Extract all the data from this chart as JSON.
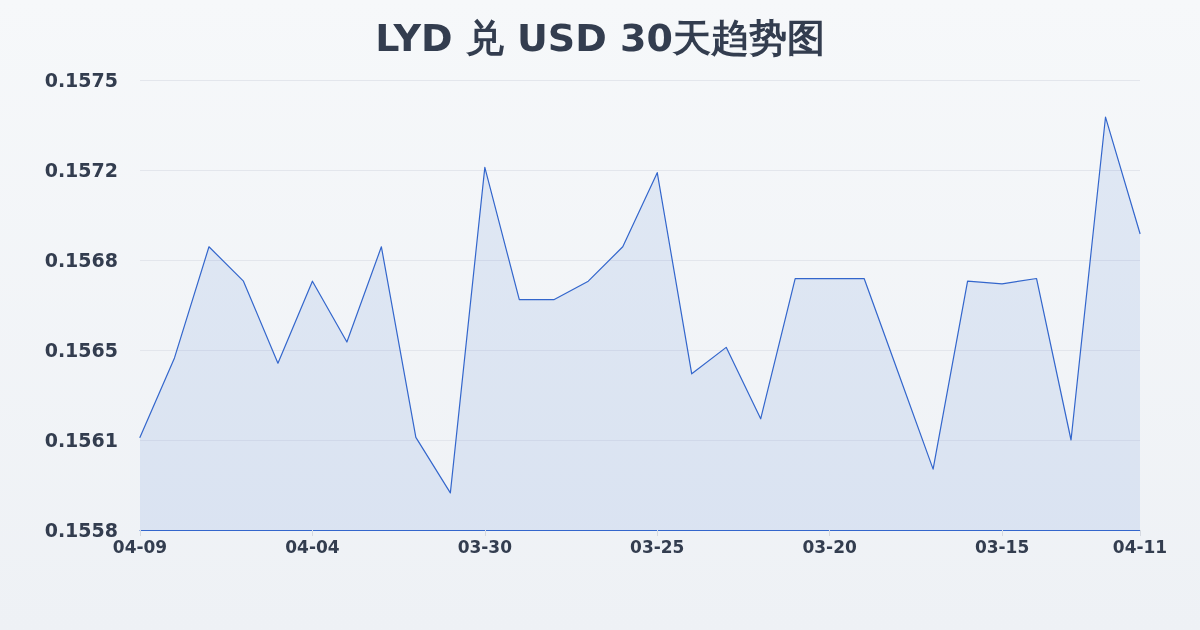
{
  "chart_data": {
    "type": "area",
    "title": "LYD 兑 USD 30天趋势图",
    "categories": [
      "04-09",
      null,
      null,
      null,
      null,
      "04-04",
      null,
      null,
      null,
      null,
      "03-30",
      null,
      null,
      null,
      null,
      "03-25",
      null,
      null,
      null,
      null,
      "03-20",
      null,
      null,
      null,
      null,
      "03-15",
      null,
      null,
      null,
      "04-11"
    ],
    "values": [
      0.15615,
      0.15645,
      0.15687,
      0.15674,
      0.15643,
      0.15674,
      0.15651,
      0.15687,
      0.15615,
      0.15594,
      0.15717,
      0.15667,
      0.15667,
      0.15674,
      0.15687,
      0.15715,
      0.15639,
      0.15649,
      0.15622,
      0.15675,
      0.15675,
      0.15675,
      0.15639,
      0.15603,
      0.15674,
      0.15673,
      0.15675,
      0.15614,
      0.15736,
      0.15692
    ],
    "color": "#3366cc",
    "ylim": [
      0.1558,
      0.1575
    ],
    "yticks": [
      0.1558,
      {
        "value": 0.15614,
        "label": "0.1561"
      },
      {
        "value": 0.15648,
        "label": "0.1565"
      },
      {
        "value": 0.15682,
        "label": "0.1568"
      },
      {
        "value": 0.15716,
        "label": "0.1572"
      },
      0.1575
    ],
    "grid": "y",
    "marker": "none",
    "line_style": "solid"
  }
}
